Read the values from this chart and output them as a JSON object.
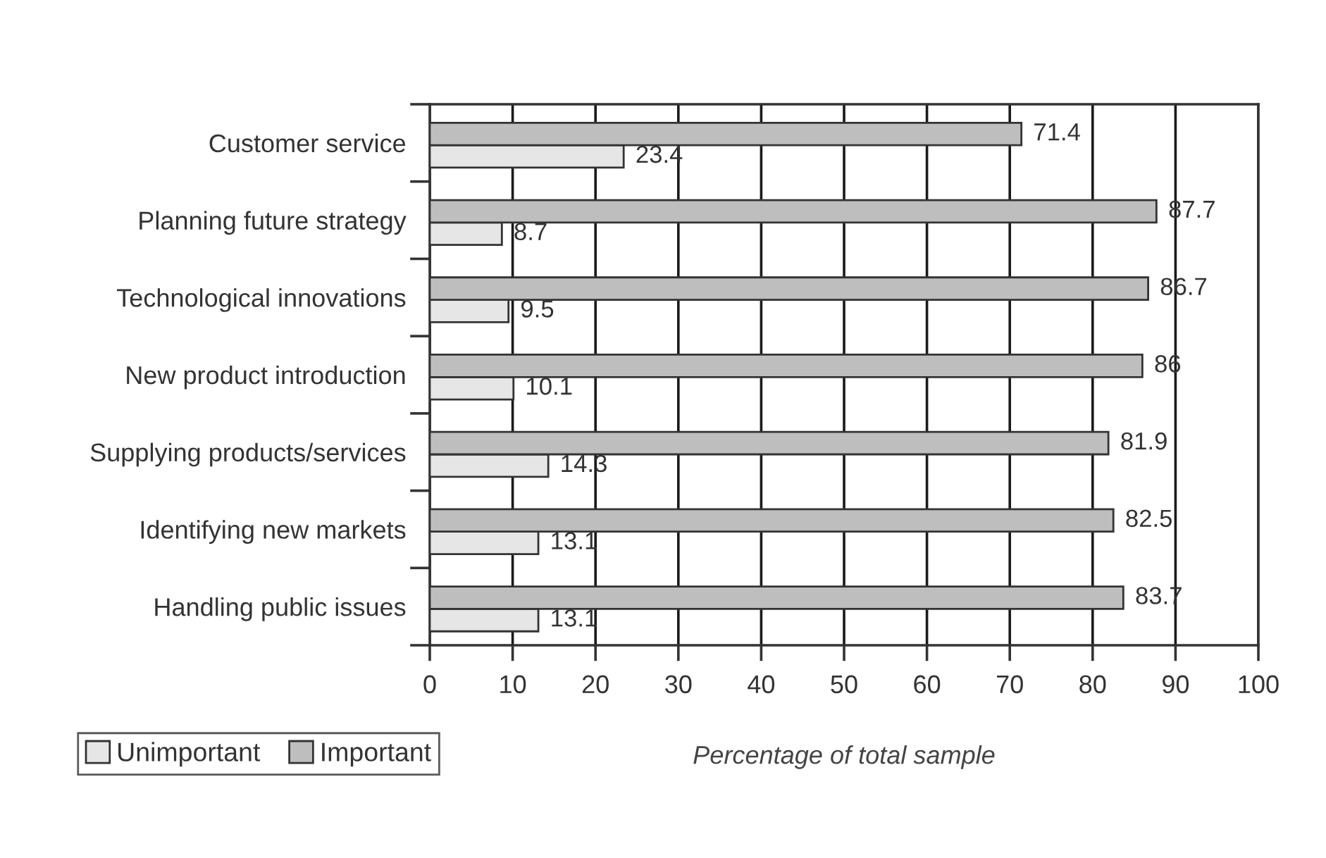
{
  "chart_data": {
    "type": "bar",
    "orientation": "horizontal",
    "categories": [
      "Customer service",
      "Planning future strategy",
      "Technological innovations",
      "New product introduction",
      "Supplying products/services",
      "Identifying new markets",
      "Handling public issues"
    ],
    "series": [
      {
        "name": "Unimportant",
        "color": "#e6e6e6",
        "values": [
          23.4,
          8.7,
          9.5,
          10.1,
          14.3,
          13.1,
          13.1
        ]
      },
      {
        "name": "Important",
        "color": "#bebebe",
        "values": [
          71.4,
          87.7,
          86.7,
          86,
          81.9,
          82.5,
          83.7
        ]
      }
    ],
    "xlabel": "Percentage of total sample",
    "xlim": [
      0,
      100
    ],
    "xticks": [
      0,
      10,
      20,
      30,
      40,
      50,
      60,
      70,
      80,
      90,
      100
    ],
    "grid": "x",
    "legend": "bottom left",
    "data_labels": true
  }
}
